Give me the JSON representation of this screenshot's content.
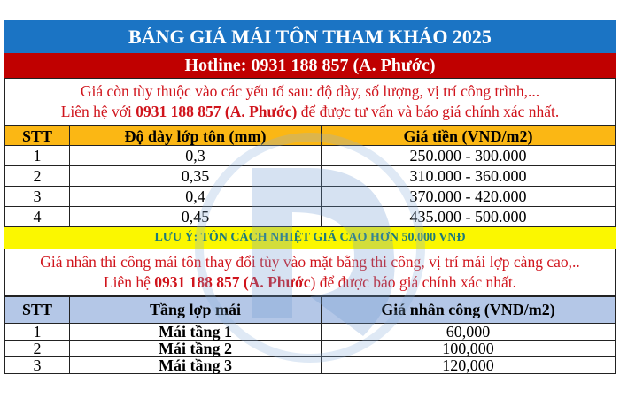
{
  "title": "BẢNG GIÁ MÁI TÔN THAM KHẢO 2025",
  "hotline": "Hotline: 0931 188 857 (A. Phước)",
  "note1": {
    "line1": "Giá còn tùy thuộc vào các yếu tố sau: độ dày, số lượng, vị trí công trình,...",
    "line2_pre": "Liên hệ với ",
    "line2_bold": "0931 188 857 (A. Phước)",
    "line2_post": " để được tư vấn và báo giá chính xác nhất."
  },
  "table1": {
    "headers": [
      "STT",
      "Độ dày lớp tôn (mm)",
      "Giá tiền (VND/m2)"
    ],
    "rows": [
      [
        "1",
        "0,3",
        "250.000 - 300.000"
      ],
      [
        "2",
        "0,35",
        "310.000 - 360.000"
      ],
      [
        "3",
        "0,4",
        "370.000 - 420.000"
      ],
      [
        "4",
        "0,45",
        "435.000 - 500.000"
      ]
    ]
  },
  "warning": "LƯU Ý: TÔN CÁCH NHIỆT GIÁ CAO HƠN 50.000 VNĐ",
  "note2": {
    "line1": "Giá nhân thi công mái tôn thay đổi tùy vào mặt bằng thi công, vị trí mái lợp càng cao,..",
    "line2_pre": "Liên hệ ",
    "line2_bold": "0931 188 857  (A. Phước",
    "line2_post": ") để được báo giá chính xác nhất."
  },
  "table2": {
    "headers": [
      "STT",
      "Tầng lợp mái",
      "Giá nhân công (VND/m2)"
    ],
    "rows": [
      [
        "1",
        "Mái tầng 1",
        "60,000"
      ],
      [
        "2",
        "Mái tầng 2",
        "100,000"
      ],
      [
        "3",
        "Mái tầng 3",
        "120,000"
      ]
    ]
  },
  "colors": {
    "title_bg": "#1b74c4",
    "hotline_bg": "#c00000",
    "header1_bg": "#fbb714",
    "warning_bg": "#fbf700",
    "header2_bg": "#b4c7e7",
    "note_text": "#d0141c"
  }
}
